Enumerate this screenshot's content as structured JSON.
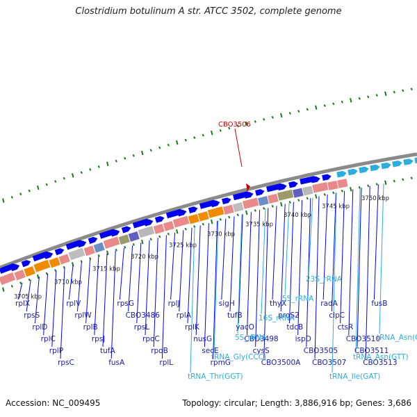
{
  "title": "Clostridium botulinum A str. ATCC 3502, complete genome",
  "footer": {
    "accession": "Accession: NC_009495",
    "topology": "Topology: circular; Length: 3,886,916 bp; Genes: 3,686"
  },
  "highlight": {
    "label": "CBO3506"
  },
  "ticks": [
    "3705 kbp",
    "3710 kbp",
    "3715 kbp",
    "3720 kbp",
    "3725 kbp",
    "3730 kbp",
    "3735 kbp",
    "3740 kbp",
    "3745 kbp",
    "3750 kbp"
  ],
  "genes_blue": [
    "rplX",
    "rpsS",
    "rplD",
    "rplC",
    "rplP",
    "rpsC",
    "rplV",
    "rplW",
    "rplB",
    "rpsJ",
    "tufA",
    "fusA",
    "rpsG",
    "CBO3486",
    "rpsL",
    "rpoC",
    "rpoB",
    "rplL",
    "rplJ",
    "rplA",
    "rplK",
    "nusG",
    "secE",
    "rpmG",
    "sigH",
    "tufB",
    "yacO",
    "CBO3498",
    "cysS",
    "CBO3500A",
    "thyX",
    "proS2",
    "tdcB",
    "ispD",
    "CBO3505",
    "CBO3507",
    "radA",
    "clpC",
    "ctsR",
    "CBO3510",
    "CBO3511",
    "CBO3513",
    "fusB"
  ],
  "genes_cyan": [
    "tRNA_Thr(GGT)",
    "tRNA_Gly(CCC)",
    "5S_rRNA",
    "16S_rRNA",
    "5S_rRNA",
    "23S_rRNA",
    "tRNA_Ile(GAT)",
    "tRNA_Asn(GTT)",
    "tRNA_Asn(GTT)"
  ],
  "colors": {
    "gene_blue": "#0000ee",
    "rna_cyan": "#2aaee0",
    "orange": "#f08a00",
    "pink": "#e88a8a",
    "highlight": "#cc0000",
    "tick_green": "#1a7a1a"
  }
}
